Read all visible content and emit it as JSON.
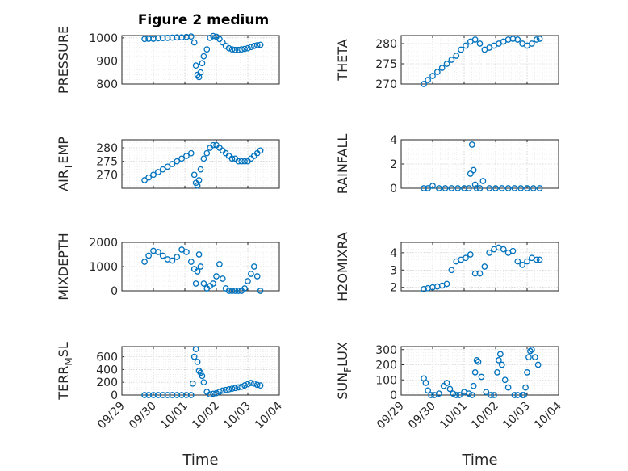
{
  "figure": {
    "title": "Figure 2 medium",
    "colors": {
      "marker": "#0072bd",
      "axis": "#262626",
      "grid": "#bfbfbf"
    }
  },
  "chart_data": [
    {
      "type": "scatter",
      "id": "pressure",
      "ylabel": "PRESSURE",
      "ylim": [
        800,
        1010
      ],
      "yticks": [
        800,
        900,
        1000
      ],
      "x": [
        0.72,
        0.85,
        1.0,
        1.15,
        1.3,
        1.45,
        1.6,
        1.75,
        1.9,
        2.05,
        2.2,
        2.3,
        2.35,
        2.4,
        2.45,
        2.5,
        2.55,
        2.6,
        2.7,
        2.8,
        2.9,
        3.0,
        3.1,
        3.2,
        3.3,
        3.4,
        3.5,
        3.6,
        3.7,
        3.8,
        3.9,
        4.0,
        4.1,
        4.2,
        4.3,
        4.4
      ],
      "y": [
        995,
        996,
        996,
        998,
        999,
        1000,
        1001,
        1002,
        1002,
        1004,
        1006,
        980,
        880,
        840,
        830,
        850,
        890,
        920,
        950,
        1000,
        1008,
        1005,
        995,
        980,
        965,
        955,
        950,
        948,
        948,
        950,
        952,
        955,
        960,
        965,
        968,
        970
      ],
      "grid": true
    },
    {
      "type": "scatter",
      "id": "theta",
      "ylabel": "THETA",
      "ylim": [
        270,
        282
      ],
      "yticks": [
        270,
        275,
        280
      ],
      "x": [
        0.72,
        0.85,
        1.0,
        1.15,
        1.3,
        1.45,
        1.6,
        1.75,
        1.9,
        2.05,
        2.2,
        2.35,
        2.5,
        2.65,
        2.8,
        2.95,
        3.1,
        3.25,
        3.4,
        3.55,
        3.7,
        3.85,
        4.0,
        4.15,
        4.3,
        4.4
      ],
      "y": [
        270,
        271,
        272,
        273,
        274,
        275,
        276,
        277,
        278.5,
        279.5,
        280.5,
        281,
        280,
        278.5,
        279,
        279.5,
        280,
        280.5,
        281,
        281.2,
        281,
        280,
        279.5,
        280,
        281,
        281.2
      ],
      "grid": true
    },
    {
      "type": "scatter",
      "id": "airtemp",
      "ylabel": "AIR",
      "ylabel_sub": "T",
      "ylabel_tail": "EMP",
      "ylim": [
        265,
        283
      ],
      "yticks": [
        270,
        275,
        280
      ],
      "x": [
        0.72,
        0.85,
        1.0,
        1.15,
        1.3,
        1.45,
        1.6,
        1.75,
        1.9,
        2.05,
        2.2,
        2.3,
        2.35,
        2.4,
        2.45,
        2.5,
        2.6,
        2.7,
        2.8,
        2.9,
        3.0,
        3.1,
        3.2,
        3.3,
        3.4,
        3.5,
        3.6,
        3.7,
        3.8,
        3.9,
        4.0,
        4.1,
        4.2,
        4.3,
        4.4
      ],
      "y": [
        268,
        269,
        270,
        271,
        272,
        273,
        274,
        275,
        276,
        277,
        278,
        270,
        267,
        266,
        268,
        272,
        276,
        278,
        280,
        281,
        281,
        280,
        279,
        278,
        277,
        276,
        276,
        275,
        275,
        275,
        275,
        276,
        277,
        278,
        279
      ],
      "grid": true
    },
    {
      "type": "scatter",
      "id": "rainfall",
      "ylabel": "RAINFALL",
      "ylim": [
        0,
        4
      ],
      "yticks": [
        0,
        2,
        4
      ],
      "x": [
        0.72,
        0.85,
        1.0,
        1.2,
        1.4,
        1.6,
        1.8,
        2.0,
        2.15,
        2.2,
        2.25,
        2.3,
        2.35,
        2.4,
        2.5,
        2.6,
        2.8,
        3.0,
        3.2,
        3.4,
        3.6,
        3.8,
        4.0,
        4.2,
        4.4
      ],
      "y": [
        0,
        0,
        0.2,
        0,
        0,
        0,
        0,
        0,
        0,
        1.2,
        3.6,
        1.5,
        0.3,
        0,
        0,
        0.6,
        0,
        0,
        0,
        0,
        0,
        0,
        0,
        0,
        0
      ],
      "grid": true
    },
    {
      "type": "scatter",
      "id": "mixdepth",
      "ylabel": "MIXDEPTH",
      "ylim": [
        0,
        2000
      ],
      "yticks": [
        0,
        1000,
        2000
      ],
      "x": [
        0.72,
        0.85,
        1.0,
        1.15,
        1.3,
        1.45,
        1.6,
        1.75,
        1.9,
        2.05,
        2.2,
        2.3,
        2.35,
        2.4,
        2.45,
        2.5,
        2.6,
        2.7,
        2.8,
        2.9,
        3.0,
        3.1,
        3.2,
        3.3,
        3.4,
        3.5,
        3.6,
        3.7,
        3.8,
        3.9,
        4.0,
        4.1,
        4.2,
        4.3,
        4.4
      ],
      "y": [
        1200,
        1450,
        1650,
        1600,
        1450,
        1300,
        1250,
        1400,
        1700,
        1600,
        1200,
        900,
        300,
        800,
        1500,
        1000,
        300,
        100,
        200,
        300,
        600,
        1100,
        500,
        100,
        0,
        0,
        0,
        0,
        0,
        100,
        400,
        700,
        1000,
        600,
        0
      ],
      "grid": true
    },
    {
      "type": "scatter",
      "id": "h2omixra",
      "ylabel": "H2OMIXRA",
      "ylim": [
        1.8,
        4.6
      ],
      "yticks": [
        2,
        3,
        4
      ],
      "x": [
        0.72,
        0.85,
        1.0,
        1.15,
        1.3,
        1.45,
        1.6,
        1.75,
        1.9,
        2.05,
        2.2,
        2.35,
        2.5,
        2.65,
        2.8,
        2.95,
        3.1,
        3.25,
        3.4,
        3.55,
        3.7,
        3.85,
        4.0,
        4.15,
        4.3,
        4.4
      ],
      "y": [
        1.9,
        1.95,
        2.0,
        2.05,
        2.1,
        2.2,
        3.0,
        3.5,
        3.6,
        3.7,
        3.9,
        2.8,
        2.8,
        3.2,
        4.0,
        4.2,
        4.3,
        4.2,
        4.0,
        4.1,
        3.5,
        3.3,
        3.5,
        3.7,
        3.6,
        3.6
      ],
      "grid": true
    },
    {
      "type": "scatter",
      "id": "terrmsl",
      "ylabel": "TERR",
      "ylabel_sub": "M",
      "ylabel_tail": "SL",
      "ylim": [
        0,
        760
      ],
      "yticks": [
        0,
        200,
        400,
        600
      ],
      "x": [
        0.72,
        0.85,
        1.0,
        1.15,
        1.3,
        1.45,
        1.6,
        1.75,
        1.9,
        2.05,
        2.2,
        2.25,
        2.3,
        2.35,
        2.4,
        2.45,
        2.5,
        2.55,
        2.6,
        2.7,
        2.8,
        2.9,
        3.0,
        3.1,
        3.2,
        3.3,
        3.4,
        3.5,
        3.6,
        3.7,
        3.8,
        3.9,
        4.0,
        4.1,
        4.2,
        4.3,
        4.4
      ],
      "y": [
        0,
        0,
        0,
        0,
        0,
        0,
        0,
        0,
        0,
        0,
        0,
        180,
        600,
        720,
        520,
        380,
        350,
        300,
        200,
        50,
        10,
        20,
        30,
        50,
        70,
        80,
        90,
        100,
        110,
        120,
        130,
        150,
        170,
        190,
        180,
        160,
        150
      ],
      "grid": true
    },
    {
      "type": "scatter",
      "id": "sunflux",
      "ylabel": "SUN",
      "ylabel_sub": "F",
      "ylabel_tail": "LUX",
      "ylim": [
        0,
        320
      ],
      "yticks": [
        0,
        100,
        200,
        300
      ],
      "x": [
        0.72,
        0.78,
        0.85,
        0.95,
        1.05,
        1.2,
        1.35,
        1.45,
        1.55,
        1.65,
        1.75,
        1.85,
        2.0,
        2.15,
        2.25,
        2.3,
        2.35,
        2.4,
        2.45,
        2.55,
        2.7,
        2.85,
        2.95,
        3.05,
        3.1,
        3.15,
        3.2,
        3.3,
        3.4,
        3.6,
        3.7,
        3.85,
        3.9,
        3.95,
        4.0,
        4.05,
        4.1,
        4.15,
        4.25,
        4.35
      ],
      "y": [
        110,
        80,
        30,
        0,
        0,
        10,
        60,
        80,
        40,
        10,
        0,
        0,
        20,
        10,
        0,
        60,
        150,
        230,
        220,
        120,
        20,
        0,
        0,
        150,
        230,
        270,
        200,
        100,
        50,
        0,
        0,
        0,
        0,
        50,
        150,
        250,
        290,
        300,
        250,
        200
      ],
      "grid": true
    }
  ],
  "axes": {
    "xticks": [
      "09/29",
      "09/30",
      "10/01",
      "10/02",
      "10/03",
      "10/04"
    ],
    "xlabel": "Time"
  }
}
